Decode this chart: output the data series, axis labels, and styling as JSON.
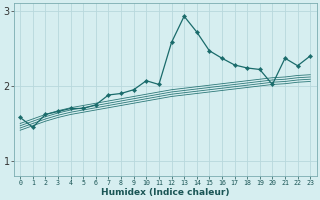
{
  "xlabel": "Humidex (Indice chaleur)",
  "background_color": "#d6eef0",
  "grid_color": "#b8d8dc",
  "line_color": "#1a6b6b",
  "x_values": [
    0,
    1,
    2,
    3,
    4,
    5,
    6,
    7,
    8,
    9,
    10,
    11,
    12,
    13,
    14,
    15,
    16,
    17,
    18,
    19,
    20,
    21,
    22,
    23
  ],
  "main_line": [
    1.58,
    1.45,
    1.62,
    1.66,
    1.7,
    1.7,
    1.75,
    1.88,
    1.9,
    1.95,
    2.07,
    2.02,
    2.58,
    2.93,
    2.72,
    2.47,
    2.37,
    2.28,
    2.24,
    2.22,
    2.02,
    2.37,
    2.27,
    2.4
  ],
  "trend_lines": [
    [
      1.5,
      1.56,
      1.62,
      1.67,
      1.71,
      1.74,
      1.77,
      1.8,
      1.83,
      1.86,
      1.89,
      1.92,
      1.95,
      1.97,
      1.99,
      2.01,
      2.03,
      2.05,
      2.07,
      2.09,
      2.11,
      2.12,
      2.14,
      2.15
    ],
    [
      1.47,
      1.53,
      1.59,
      1.64,
      1.68,
      1.71,
      1.74,
      1.77,
      1.8,
      1.83,
      1.86,
      1.89,
      1.92,
      1.94,
      1.96,
      1.98,
      2.0,
      2.02,
      2.04,
      2.06,
      2.08,
      2.09,
      2.11,
      2.12
    ],
    [
      1.44,
      1.5,
      1.56,
      1.61,
      1.65,
      1.68,
      1.71,
      1.74,
      1.77,
      1.8,
      1.83,
      1.86,
      1.89,
      1.91,
      1.93,
      1.95,
      1.97,
      1.99,
      2.01,
      2.03,
      2.05,
      2.06,
      2.08,
      2.09
    ],
    [
      1.41,
      1.47,
      1.53,
      1.58,
      1.62,
      1.65,
      1.68,
      1.71,
      1.74,
      1.77,
      1.8,
      1.83,
      1.86,
      1.88,
      1.9,
      1.92,
      1.94,
      1.96,
      1.98,
      2.0,
      2.02,
      2.03,
      2.05,
      2.06
    ]
  ],
  "ylim": [
    0.8,
    3.1
  ],
  "yticks": [
    1,
    2,
    3
  ],
  "xlim": [
    -0.5,
    23.5
  ],
  "figsize": [
    3.2,
    2.0
  ],
  "dpi": 100
}
